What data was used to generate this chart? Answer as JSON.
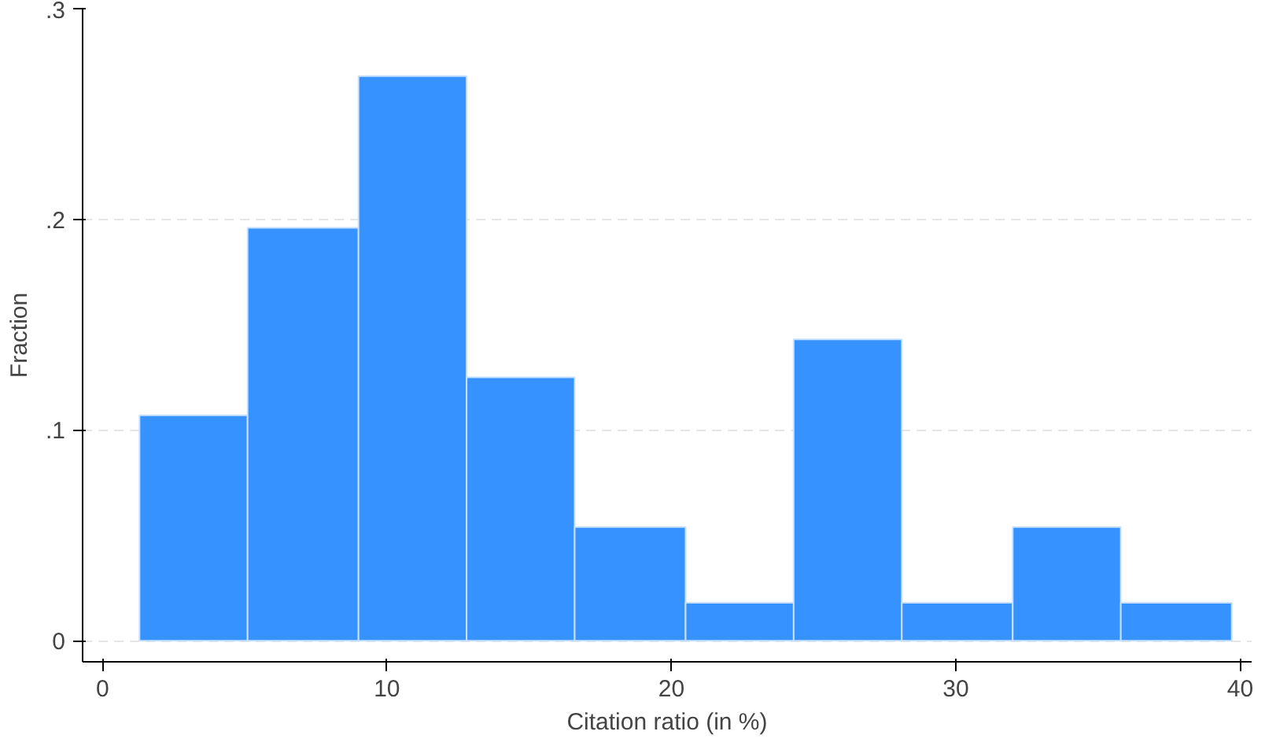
{
  "chart_data": {
    "type": "histogram",
    "xlabel": "Citation ratio (in %)",
    "ylabel": "Fraction",
    "bins": [
      1.3,
      5.1,
      9.0,
      12.8,
      16.6,
      20.5,
      24.3,
      28.1,
      32.0,
      35.8,
      39.7
    ],
    "values": [
      0.107,
      0.196,
      0.268,
      0.125,
      0.054,
      0.018,
      0.143,
      0.018,
      0.054,
      0.018
    ],
    "color": "#3592ff",
    "xlim": [
      -0.7,
      40.4
    ],
    "ylim": [
      -0.01,
      0.3
    ],
    "xticks": [
      0,
      10,
      20,
      30,
      40
    ],
    "yticks": [
      0,
      {
        "value": 0.1,
        "label": ".1"
      },
      {
        "value": 0.2,
        "label": ".2"
      },
      {
        "value": 0.3,
        "label": ".3"
      }
    ],
    "grid": "y"
  }
}
